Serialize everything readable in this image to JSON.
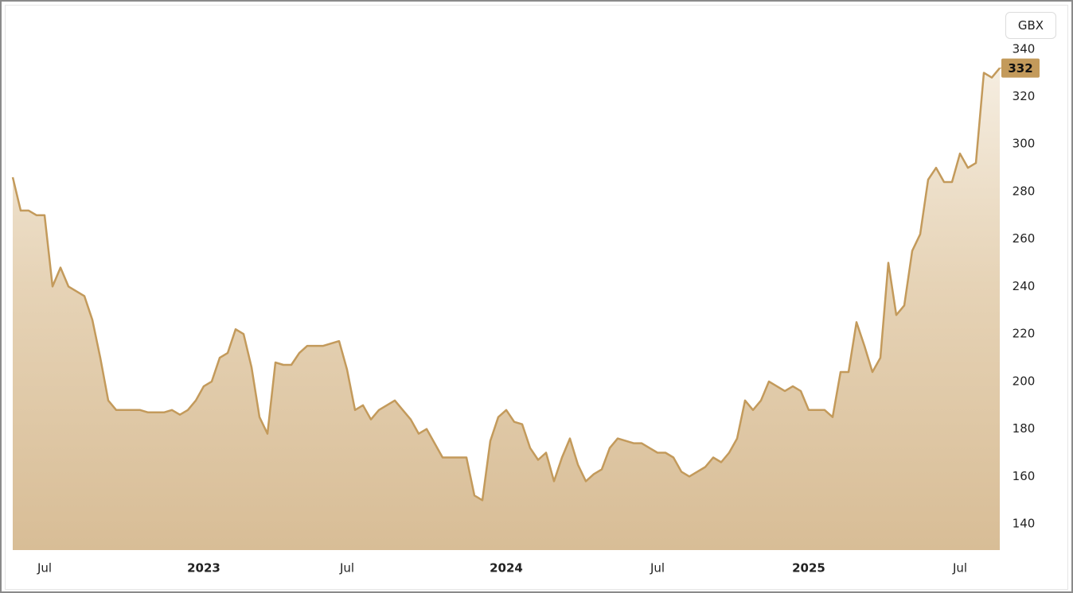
{
  "currency": "GBX",
  "chart_data": {
    "type": "area",
    "categories": [
      null,
      null,
      null,
      null,
      "Jul",
      null,
      null,
      null,
      null,
      null,
      null,
      null,
      null,
      null,
      null,
      null,
      null,
      null,
      null,
      null,
      null,
      null,
      null,
      null,
      "2023",
      null,
      null,
      null,
      null,
      null,
      null,
      null,
      null,
      null,
      null,
      null,
      null,
      null,
      null,
      null,
      null,
      null,
      "Jul",
      null,
      null,
      null,
      null,
      null,
      null,
      null,
      null,
      null,
      null,
      null,
      null,
      null,
      null,
      null,
      null,
      null,
      null,
      null,
      "2024",
      null,
      null,
      null,
      null,
      null,
      null,
      null,
      null,
      null,
      null,
      null,
      null,
      null,
      null,
      null,
      null,
      null,
      null,
      "Jul",
      null,
      null,
      null,
      null,
      null,
      null,
      null,
      null,
      null,
      null,
      null,
      null,
      null,
      null,
      null,
      null,
      null,
      null,
      "2025",
      null,
      null,
      null,
      null,
      null,
      null,
      null,
      null,
      null,
      null,
      null,
      null,
      null,
      null,
      null,
      null,
      null,
      null,
      "Jul",
      null,
      null,
      null,
      null,
      null
    ],
    "series": [
      {
        "name": "GBX",
        "color": "#c39a5b",
        "values": [
          286,
          272,
          272,
          270,
          270,
          240,
          248,
          240,
          238,
          236,
          226,
          210,
          192,
          188,
          188,
          188,
          188,
          187,
          187,
          187,
          188,
          186,
          188,
          192,
          198,
          200,
          210,
          212,
          222,
          220,
          206,
          185,
          178,
          208,
          207,
          207,
          212,
          215,
          215,
          215,
          216,
          217,
          205,
          188,
          190,
          184,
          188,
          190,
          192,
          188,
          184,
          178,
          180,
          174,
          168,
          168,
          168,
          168,
          152,
          150,
          175,
          185,
          188,
          183,
          182,
          172,
          167,
          170,
          158,
          168,
          176,
          165,
          158,
          161,
          163,
          172,
          176,
          175,
          174,
          174,
          172,
          170,
          170,
          168,
          162,
          160,
          162,
          164,
          168,
          166,
          170,
          176,
          192,
          188,
          192,
          200,
          198,
          196,
          198,
          196,
          188,
          188,
          188,
          185,
          204,
          204,
          225,
          215,
          204,
          210,
          250,
          228,
          232,
          255,
          262,
          285,
          290,
          284,
          284,
          296,
          290,
          292,
          330,
          328,
          332
        ]
      }
    ],
    "ylim": [
      129,
      359
    ],
    "yticks": [
      140,
      160,
      180,
      200,
      220,
      240,
      260,
      280,
      300,
      320,
      340
    ],
    "grid": false
  }
}
